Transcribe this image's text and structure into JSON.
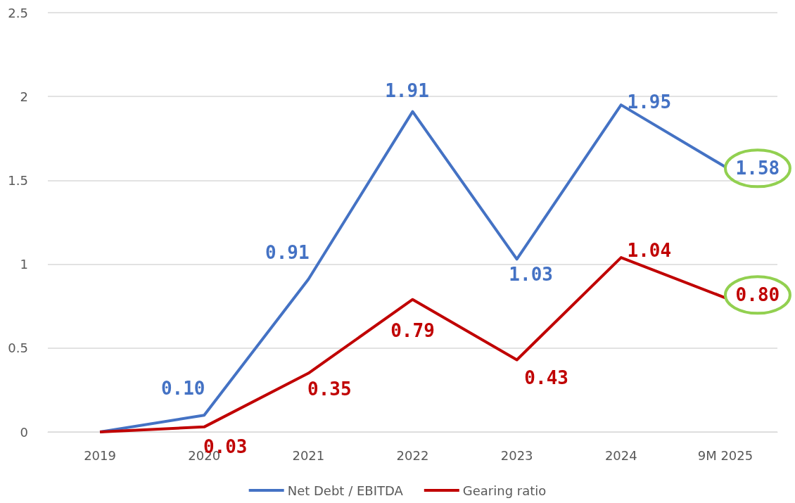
{
  "chart_data": {
    "type": "line",
    "categories": [
      "2019",
      "2020",
      "2021",
      "2022",
      "2023",
      "2024",
      "9M 2025"
    ],
    "series": [
      {
        "name": "Net Debt / EBITDA",
        "color": "#4472c4",
        "values": [
          0,
          0.1,
          0.91,
          1.91,
          1.03,
          1.95,
          1.58
        ],
        "value_labels": [
          null,
          "0.10",
          "0.91",
          "1.91",
          "1.03",
          "1.95",
          "1.58"
        ]
      },
      {
        "name": "Gearing ratio",
        "color": "#c00000",
        "values": [
          0,
          0.03,
          0.35,
          0.79,
          0.43,
          1.04,
          0.8
        ],
        "value_labels": [
          null,
          "0.03",
          "0.35",
          "0.79",
          "0.43",
          "1.04",
          "0.80"
        ]
      }
    ],
    "ylim": [
      0,
      2.5
    ],
    "yticks": [
      0,
      0.5,
      1,
      1.5,
      2,
      2.5
    ],
    "grid": "y",
    "legend": "bottom",
    "marker": "none",
    "line_style": "solid"
  }
}
